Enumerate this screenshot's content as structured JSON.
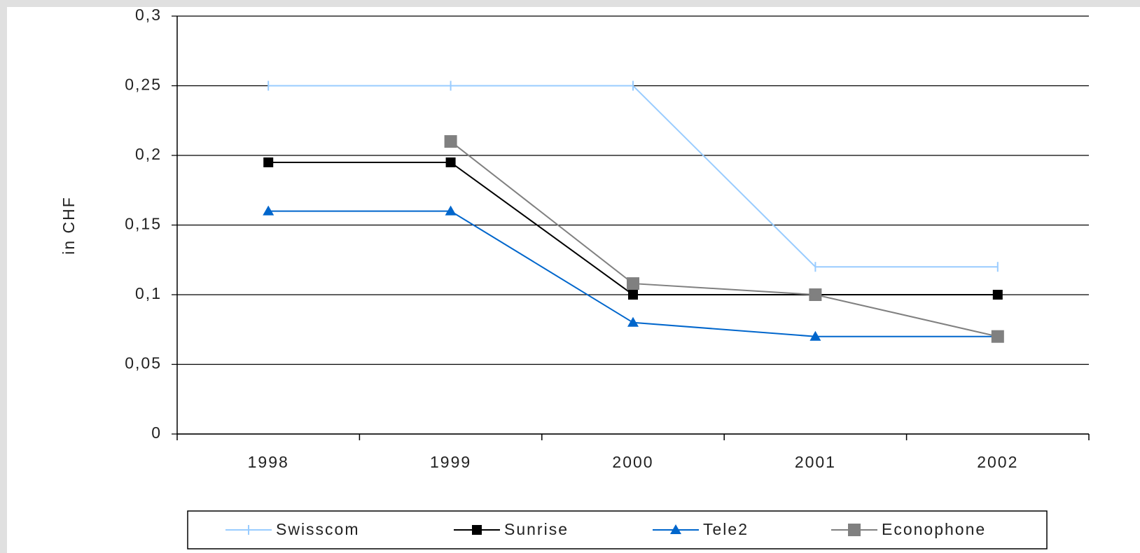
{
  "chart_data": {
    "type": "line",
    "y_label": "in CHF",
    "categories": [
      "1998",
      "1999",
      "2000",
      "2001",
      "2002"
    ],
    "series": [
      {
        "name": "Swisscom",
        "color": "#99ccff",
        "marker": "tick",
        "values": [
          0.25,
          0.25,
          0.25,
          0.12,
          0.12
        ]
      },
      {
        "name": "Sunrise",
        "color": "#000000",
        "marker": "square",
        "values": [
          0.195,
          0.195,
          0.1,
          0.1,
          0.1
        ]
      },
      {
        "name": "Tele2",
        "color": "#0066cc",
        "marker": "triangle",
        "values": [
          0.16,
          0.16,
          0.08,
          0.07,
          0.07
        ]
      },
      {
        "name": "Econophone",
        "color": "#808080",
        "marker": "bigsquare",
        "values": [
          null,
          0.21,
          0.108,
          0.1,
          0.07
        ]
      }
    ],
    "ylim": [
      0,
      0.3
    ],
    "yticks": [
      0,
      {
        "value": 0.05,
        "label": "0,05"
      },
      {
        "value": 0.1,
        "label": "0,1"
      },
      {
        "value": 0.15,
        "label": "0,15"
      },
      {
        "value": 0.2,
        "label": "0,2"
      },
      {
        "value": 0.25,
        "label": "0,25"
      },
      {
        "value": 0.3,
        "label": "0,3"
      }
    ],
    "grid": true,
    "legend": "bottom"
  }
}
